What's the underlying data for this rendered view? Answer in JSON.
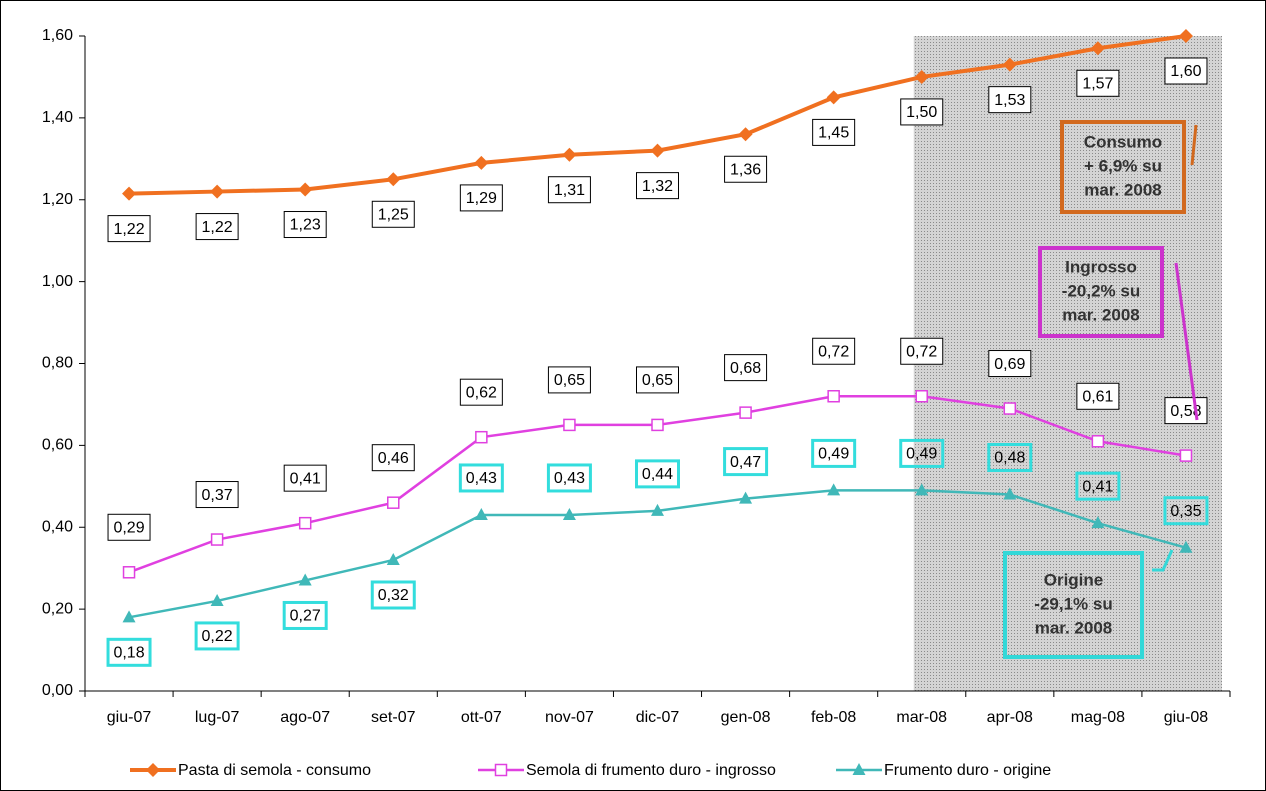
{
  "chart_data": {
    "type": "line",
    "categories": [
      "giu-07",
      "lug-07",
      "ago-07",
      "set-07",
      "ott-07",
      "nov-07",
      "dic-07",
      "gen-08",
      "feb-08",
      "mar-08",
      "apr-08",
      "mag-08",
      "giu-08"
    ],
    "ylim": [
      0,
      1.6
    ],
    "yticks": [
      {
        "value": 0,
        "label": "0,00"
      },
      {
        "value": 0.2,
        "label": "0,20"
      },
      {
        "value": 0.4,
        "label": "0,40"
      },
      {
        "value": 0.6,
        "label": "0,60"
      },
      {
        "value": 0.8,
        "label": "0,80"
      },
      {
        "value": 1.0,
        "label": "1,00"
      },
      {
        "value": 1.2,
        "label": "1,20"
      },
      {
        "value": 1.4,
        "label": "1,40"
      },
      {
        "value": 1.6,
        "label": "1,60"
      }
    ],
    "series": [
      {
        "name": "Pasta di semola - consumo",
        "color": "#f07020",
        "marker": "diamond",
        "values": [
          1.215,
          1.22,
          1.225,
          1.25,
          1.29,
          1.31,
          1.32,
          1.36,
          1.45,
          1.5,
          1.53,
          1.57,
          1.6
        ],
        "value_labels": [
          "1,22",
          "1,22",
          "1,23",
          "1,25",
          "1,29",
          "1,31",
          "1,32",
          "1,36",
          "1,45",
          "1,50",
          "1,53",
          "1,57",
          "1,60"
        ]
      },
      {
        "name": "Semola di frumento duro - ingrosso",
        "color": "#e040e0",
        "marker": "square",
        "values": [
          0.29,
          0.37,
          0.41,
          0.46,
          0.62,
          0.65,
          0.65,
          0.68,
          0.72,
          0.72,
          0.69,
          0.61,
          0.575
        ],
        "value_labels": [
          "0,29",
          "0,37",
          "0,41",
          "0,46",
          "0,62",
          "0,65",
          "0,65",
          "0,68",
          "0,72",
          "0,72",
          "0,69",
          "0,61",
          "0,58"
        ]
      },
      {
        "name": "Frumento duro - origine",
        "color": "#40b8b8",
        "marker": "triangle",
        "values": [
          0.18,
          0.22,
          0.27,
          0.32,
          0.43,
          0.43,
          0.44,
          0.47,
          0.49,
          0.49,
          0.48,
          0.41,
          0.35
        ],
        "value_labels": [
          "0,18",
          "0,22",
          "0,27",
          "0,32",
          "0,43",
          "0,43",
          "0,44",
          "0,47",
          "0,49",
          "0,49",
          "0,48",
          "0,41",
          "0,35"
        ]
      }
    ],
    "annotations": [
      {
        "lines": [
          "Consumo",
          "+ 6,9% su",
          "mar. 2008"
        ],
        "color": "#d2691e"
      },
      {
        "lines": [
          "Ingrosso",
          "-20,2% su",
          "mar. 2008"
        ],
        "color": "#cc33cc"
      },
      {
        "lines": [
          "Origine",
          "-29,1% su",
          "mar. 2008"
        ],
        "color": "#33d8d8"
      }
    ]
  }
}
